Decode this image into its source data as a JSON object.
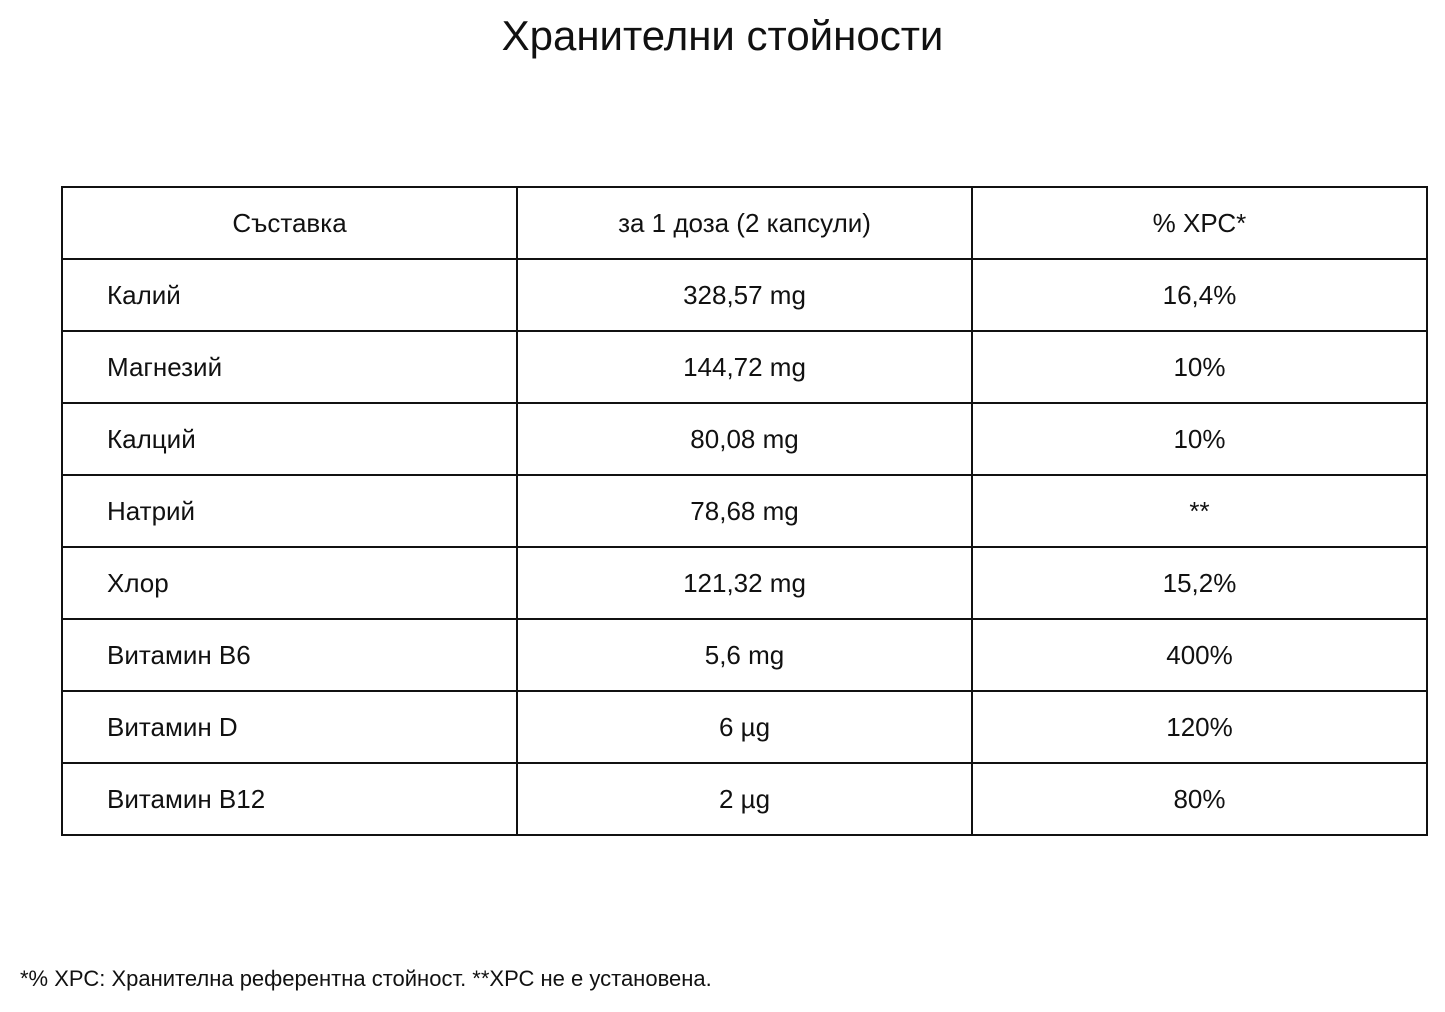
{
  "title": "Хранителни стойности",
  "table": {
    "header": [
      "Съставка",
      "за 1 доза (2 капсули)",
      "% ХРС*"
    ],
    "rows": [
      [
        "Калий",
        "328,57 mg",
        "16,4%"
      ],
      [
        "Магнезий",
        "144,72 mg",
        "10%"
      ],
      [
        "Калций",
        "80,08 mg",
        "10%"
      ],
      [
        "Натрий",
        "78,68 mg",
        "**"
      ],
      [
        "Хлор",
        "121,32 mg",
        "15,2%"
      ],
      [
        "Витамин B6",
        "5,6 mg",
        "400%"
      ],
      [
        "Витамин D",
        "6 µg",
        "120%"
      ],
      [
        "Витамин B12",
        "2 µg",
        "80%"
      ]
    ]
  },
  "footnote": "*% ХРС: Хранителна референтна стойност. **ХРС не е установена."
}
